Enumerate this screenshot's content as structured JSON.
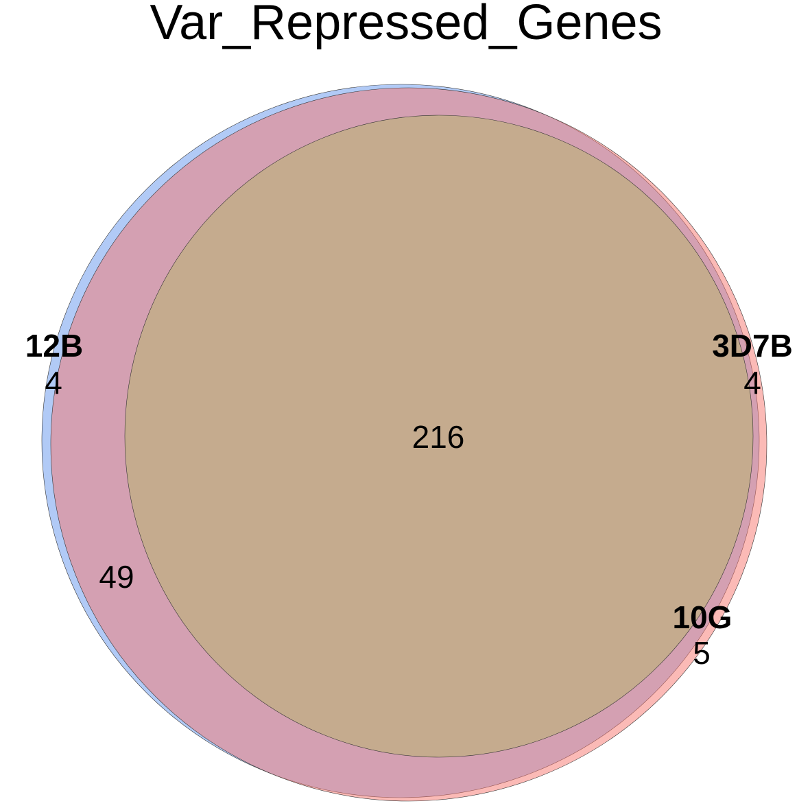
{
  "chart_data": {
    "type": "venn",
    "title": "Var_Repressed_Genes",
    "sets": [
      {
        "name": "12B",
        "color": "#6495ED",
        "opacity": 0.5
      },
      {
        "name": "10G",
        "color": "#F8766D",
        "opacity": 0.5
      },
      {
        "name": "3D7B",
        "color": "#B5B56A",
        "opacity": 0.5
      }
    ],
    "regions": {
      "only_12B": "4",
      "only_3D7B": "4",
      "only_10G": "5",
      "12B_10G": "49",
      "all_three": "216"
    }
  }
}
